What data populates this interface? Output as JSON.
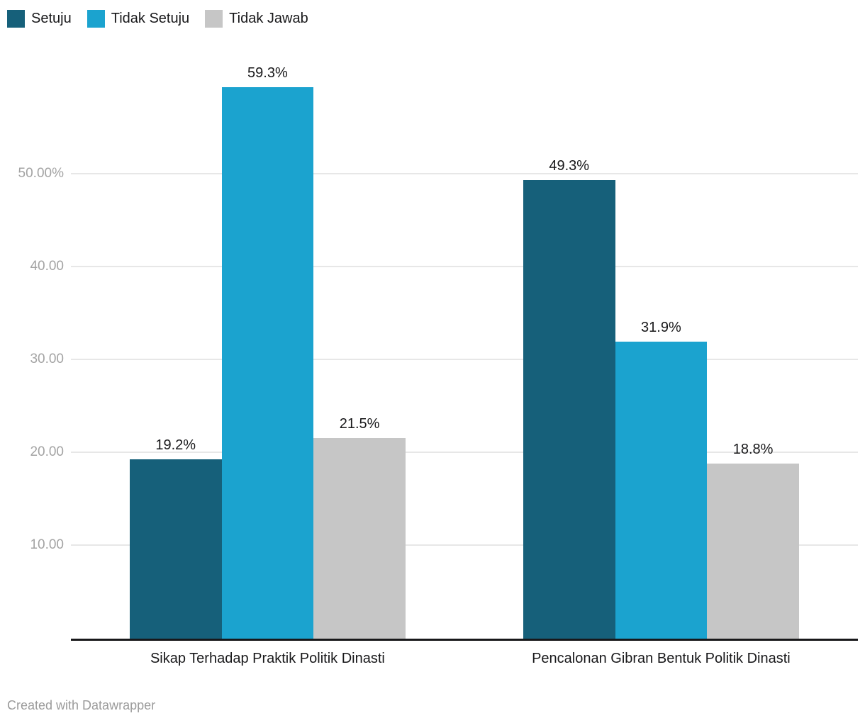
{
  "legend": {
    "items": [
      {
        "label": "Setuju",
        "color": "#16607a",
        "icon": "swatch-square"
      },
      {
        "label": "Tidak Setuju",
        "color": "#1ba3cf",
        "icon": "swatch-square"
      },
      {
        "label": "Tidak Jawab",
        "color": "#c6c6c6",
        "icon": "swatch-square"
      }
    ]
  },
  "chart_data": {
    "type": "bar",
    "title": "",
    "categories": [
      "Sikap Terhadap Praktik Politik Dinasti",
      "Pencalonan Gibran Bentuk Politik Dinasti"
    ],
    "series": [
      {
        "name": "Setuju",
        "color": "#16607a",
        "values": [
          19.2,
          49.3
        ]
      },
      {
        "name": "Tidak Setuju",
        "color": "#1ba3cf",
        "values": [
          59.3,
          31.9
        ]
      },
      {
        "name": "Tidak Jawab",
        "color": "#c6c6c6",
        "values": [
          21.5,
          18.8
        ]
      }
    ],
    "value_labels": [
      [
        "19.2%",
        "49.3%"
      ],
      [
        "59.3%",
        "31.9%"
      ],
      [
        "21.5%",
        "18.8%"
      ]
    ],
    "ylabel": "",
    "xlabel": "",
    "ylim": [
      0,
      60
    ],
    "grid": true,
    "legend_position": "top-left",
    "y_axis_ticks": [
      {
        "value": 50,
        "label": "50.00%"
      },
      {
        "value": 40,
        "label": "40.00"
      },
      {
        "value": 30,
        "label": "30.00"
      },
      {
        "value": 20,
        "label": "20.00"
      },
      {
        "value": 10,
        "label": "10.00"
      }
    ]
  },
  "colors": {
    "grid": "#e7e7e7",
    "axis_line": "#18181a",
    "tick_label": "#a3a3a3",
    "value_label": "#18181a",
    "footer_text": "#9b9b9b"
  },
  "footer": {
    "credit": "Created with Datawrapper"
  }
}
